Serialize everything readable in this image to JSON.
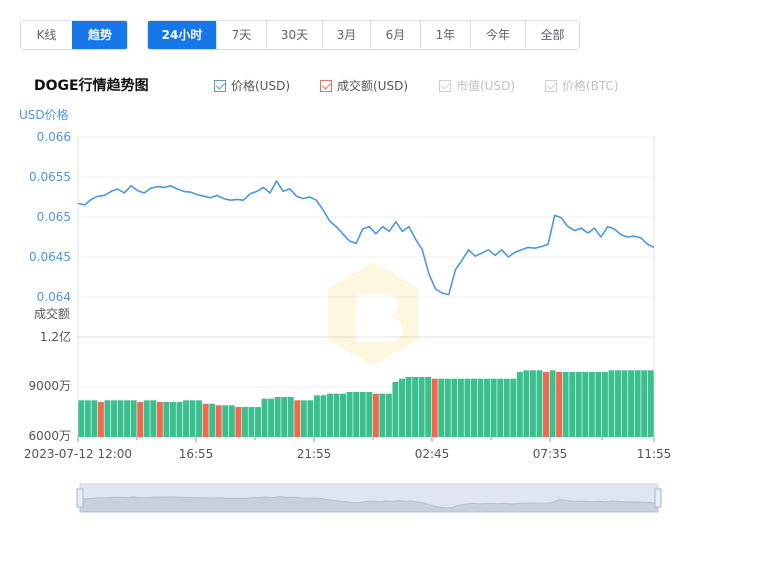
{
  "tabs_a": [
    {
      "label": "K线",
      "active": false
    },
    {
      "label": "趋势",
      "active": true
    }
  ],
  "tabs_b": [
    {
      "label": "24小时",
      "active": true
    },
    {
      "label": "7天",
      "active": false
    },
    {
      "label": "30天",
      "active": false
    },
    {
      "label": "3月",
      "active": false
    },
    {
      "label": "6月",
      "active": false
    },
    {
      "label": "1年",
      "active": false
    },
    {
      "label": "今年",
      "active": false
    },
    {
      "label": "全部",
      "active": false
    }
  ],
  "title": "DOGE行情趋势图",
  "legend": [
    {
      "label": "价格(USD)",
      "checked": true,
      "enabled": true,
      "color": "#5b9bd5"
    },
    {
      "label": "成交额(USD)",
      "checked": true,
      "enabled": true,
      "color": "#e8735a"
    },
    {
      "label": "市值(USD)",
      "checked": true,
      "enabled": false,
      "color": "#c8c8c8"
    },
    {
      "label": "价格(BTC)",
      "checked": true,
      "enabled": false,
      "color": "#c8c8c8"
    }
  ],
  "chart_data": {
    "type": "line",
    "price_axis_title": "USD价格",
    "volume_axis_title": "成交额",
    "price_ylim": [
      0.064,
      0.066
    ],
    "price_ticks": [
      "0.066",
      "0.0655",
      "0.065",
      "0.0645",
      "0.064"
    ],
    "volume_ticks": [
      "1.2亿",
      "9000万",
      "6000万"
    ],
    "volume_ylim": [
      60000000,
      120000000
    ],
    "x_tick_labels": [
      "2023-07-12 12:00",
      "16:55",
      "21:55",
      "02:45",
      "07:35",
      "11:55"
    ],
    "price_color": "#4a98e0",
    "volume_up_color": "#3cbf8f",
    "volume_down_color": "#ef6a4c",
    "series": [
      {
        "name": "价格(USD)",
        "values": [
          0.06517,
          0.06515,
          0.06522,
          0.06526,
          0.06527,
          0.06532,
          0.06535,
          0.0653,
          0.06539,
          0.06533,
          0.0653,
          0.06536,
          0.06538,
          0.06537,
          0.06539,
          0.06535,
          0.06532,
          0.06531,
          0.06528,
          0.06526,
          0.06524,
          0.06527,
          0.06523,
          0.06521,
          0.06522,
          0.06521,
          0.06529,
          0.06532,
          0.06537,
          0.0653,
          0.06545,
          0.06532,
          0.06535,
          0.06526,
          0.06523,
          0.06525,
          0.06521,
          0.06509,
          0.06495,
          0.06488,
          0.06479,
          0.0647,
          0.06467,
          0.06485,
          0.06488,
          0.06479,
          0.06488,
          0.06482,
          0.06494,
          0.06482,
          0.06488,
          0.06472,
          0.06459,
          0.06429,
          0.0641,
          0.06405,
          0.06403,
          0.06434,
          0.06446,
          0.06459,
          0.06451,
          0.06455,
          0.06459,
          0.06452,
          0.06459,
          0.0645,
          0.06456,
          0.06459,
          0.06462,
          0.06461,
          0.06463,
          0.06466,
          0.06502,
          0.06499,
          0.06488,
          0.06483,
          0.06486,
          0.0648,
          0.06486,
          0.06475,
          0.06488,
          0.06485,
          0.06478,
          0.06475,
          0.06476,
          0.06474,
          0.06466,
          0.06462
        ]
      },
      {
        "name": "成交额(USD)",
        "values": [
          82000000,
          82000000,
          82000000,
          81000000,
          82000000,
          82000000,
          82000000,
          82000000,
          82000000,
          81000000,
          82000000,
          82000000,
          81000000,
          81000000,
          81000000,
          81000000,
          82000000,
          82000000,
          82000000,
          80000000,
          80000000,
          79000000,
          79000000,
          79000000,
          78000000,
          78000000,
          78000000,
          78000000,
          83000000,
          83000000,
          84000000,
          84000000,
          84000000,
          82000000,
          82000000,
          82000000,
          85000000,
          85000000,
          86000000,
          86000000,
          86000000,
          87000000,
          87000000,
          87000000,
          87000000,
          86000000,
          86000000,
          86000000,
          93000000,
          95000000,
          96000000,
          96000000,
          96000000,
          96000000,
          95000000,
          95000000,
          95000000,
          95000000,
          95000000,
          95000000,
          95000000,
          95000000,
          95000000,
          95000000,
          95000000,
          95000000,
          95000000,
          99000000,
          100000000,
          100000000,
          100000000,
          99000000,
          100000000,
          99000000,
          99000000,
          99000000,
          99000000,
          99000000,
          99000000,
          99000000,
          99000000,
          100000000,
          100000000,
          100000000,
          100000000,
          100000000,
          100000000,
          100000000
        ]
      }
    ]
  }
}
